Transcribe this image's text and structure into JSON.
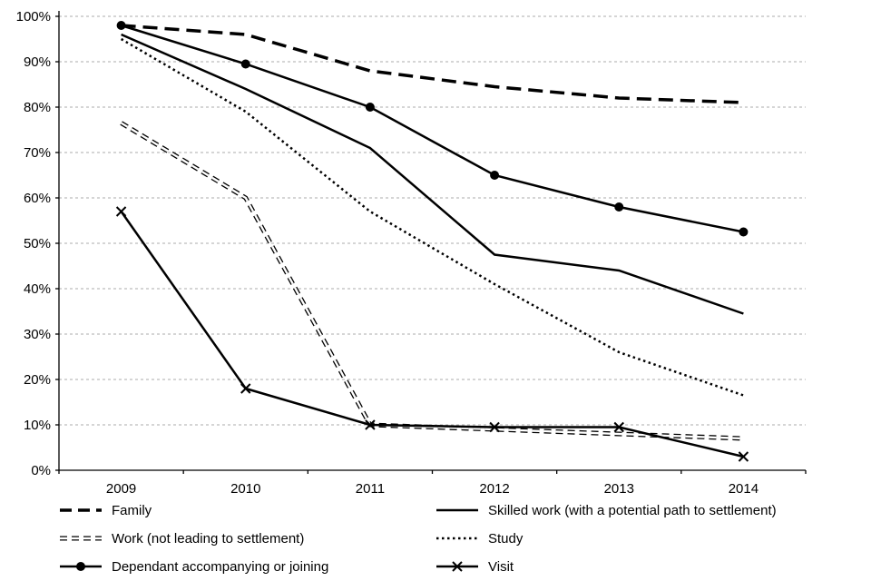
{
  "chart_data": {
    "type": "line",
    "title": "",
    "xlabel": "",
    "ylabel": "",
    "x": [
      "2009",
      "2010",
      "2011",
      "2012",
      "2013",
      "2014"
    ],
    "ylim": [
      0,
      100
    ],
    "ytick_step": 10,
    "ytick_labels": [
      "0%",
      "10%",
      "20%",
      "30%",
      "40%",
      "50%",
      "60%",
      "70%",
      "80%",
      "90%",
      "100%"
    ],
    "grid": "horizontal-dashed",
    "legend_position": "bottom",
    "series": [
      {
        "name": "Family",
        "style": "thick-dashed",
        "values": [
          98,
          96,
          88,
          84.5,
          82,
          81
        ]
      },
      {
        "name": "Skilled work (with a potential path to settlement)",
        "style": "solid",
        "values": [
          96,
          84,
          71,
          47.5,
          44,
          34.5
        ]
      },
      {
        "name": "Work (not leading to settlement)",
        "style": "hollow-dashed",
        "values": [
          76.5,
          60,
          10,
          9,
          8,
          7
        ]
      },
      {
        "name": "Study",
        "style": "dotted",
        "values": [
          95,
          79,
          57,
          41,
          26,
          16.5
        ]
      },
      {
        "name": "Dependant accompanying or joining",
        "style": "solid-circle",
        "values": [
          98,
          89.5,
          80,
          65,
          58,
          52.5
        ]
      },
      {
        "name": "Visit",
        "style": "solid-x",
        "values": [
          57,
          18,
          10,
          9.5,
          9.5,
          3
        ]
      }
    ],
    "colors": {
      "line": "#000000",
      "grid": "#ababab",
      "axis": "#000000",
      "background": "#ffffff",
      "text": "#000000"
    }
  }
}
